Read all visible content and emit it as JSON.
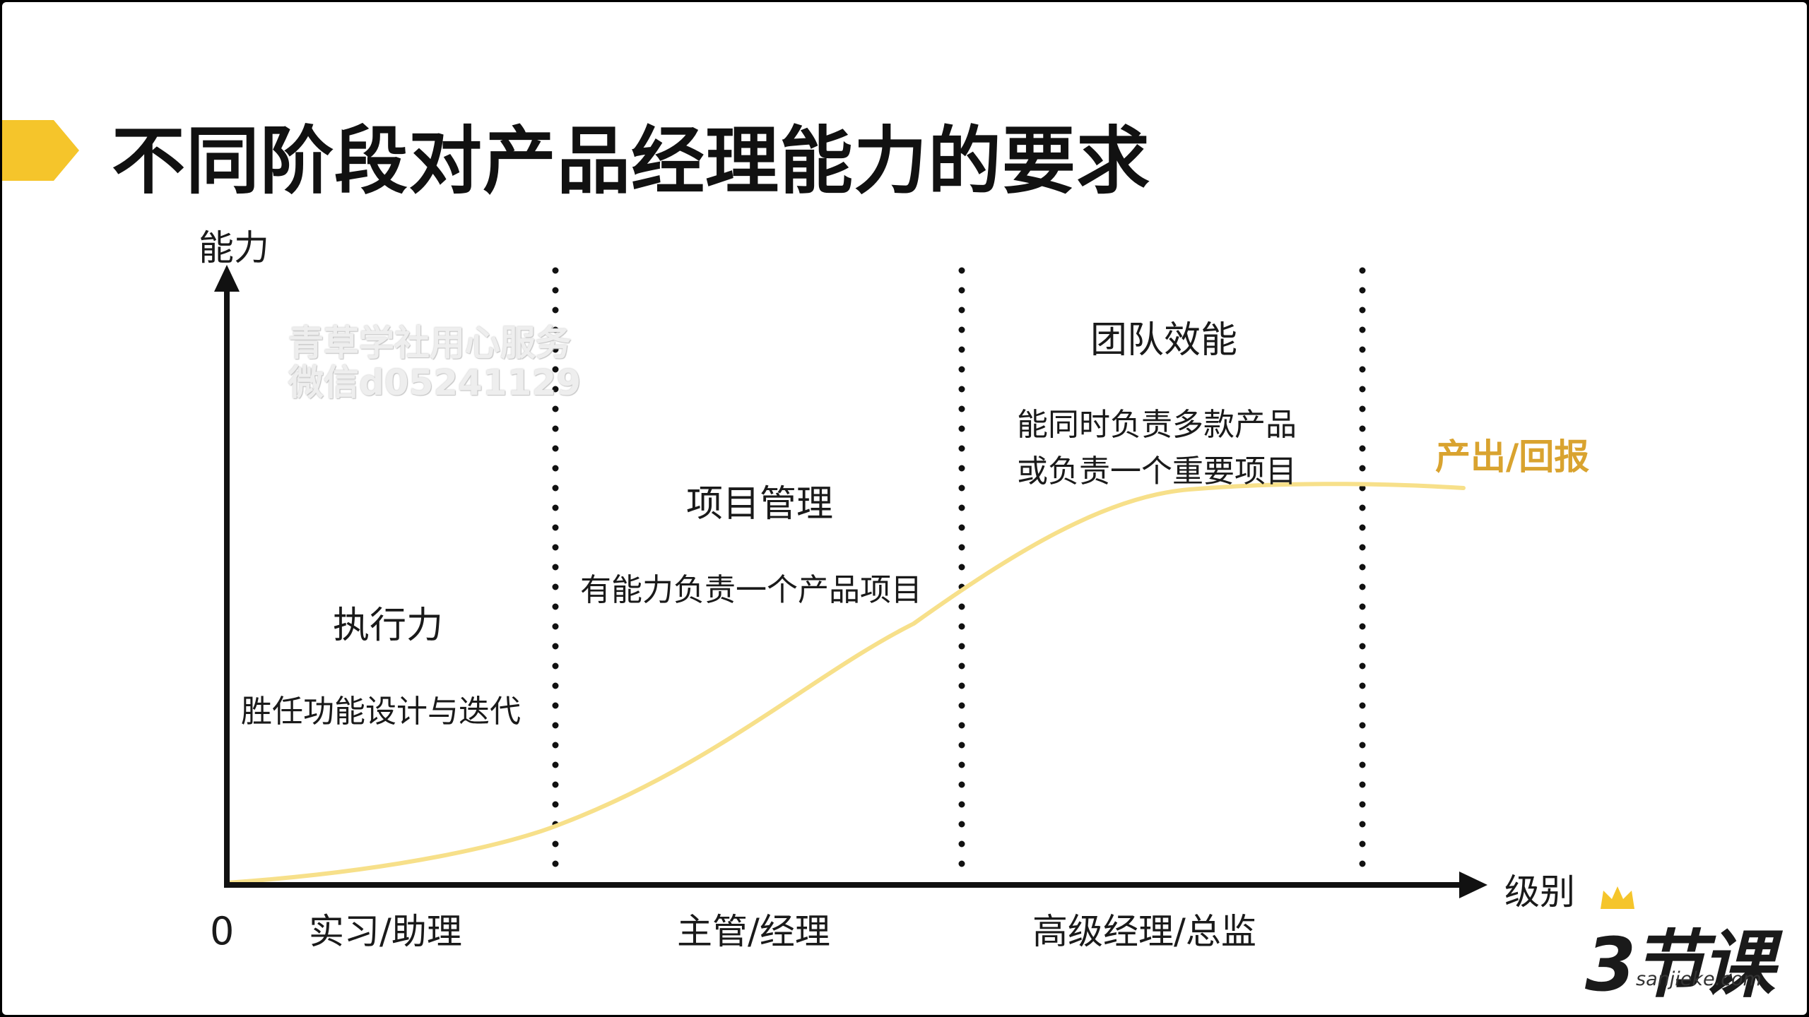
{
  "title": "不同阶段对产品经理能力的要求",
  "watermark": [
    "青草学社用心服务",
    "微信d05241129"
  ],
  "axes": {
    "y_label": "能力",
    "x_label": "级别",
    "origin": "0"
  },
  "levels": [
    "实习/助理",
    "主管/经理",
    "高级经理/总监"
  ],
  "stages": [
    {
      "title": "执行力",
      "desc": [
        "胜任功能设计与迭代"
      ]
    },
    {
      "title": "项目管理",
      "desc": [
        "有能力负责一个产品项目"
      ]
    },
    {
      "title": "团队效能",
      "desc": [
        "能同时负责多款产品",
        "或负责一个重要项目"
      ]
    }
  ],
  "curve_label": "产出/回报",
  "colors": {
    "accent": "#f5c52b",
    "curve": "#f7e08a",
    "curve_label": "#d9a32f",
    "text": "#1a1a1a"
  },
  "logo": {
    "mark": "3节课",
    "sub": "sanjieke.com"
  }
}
